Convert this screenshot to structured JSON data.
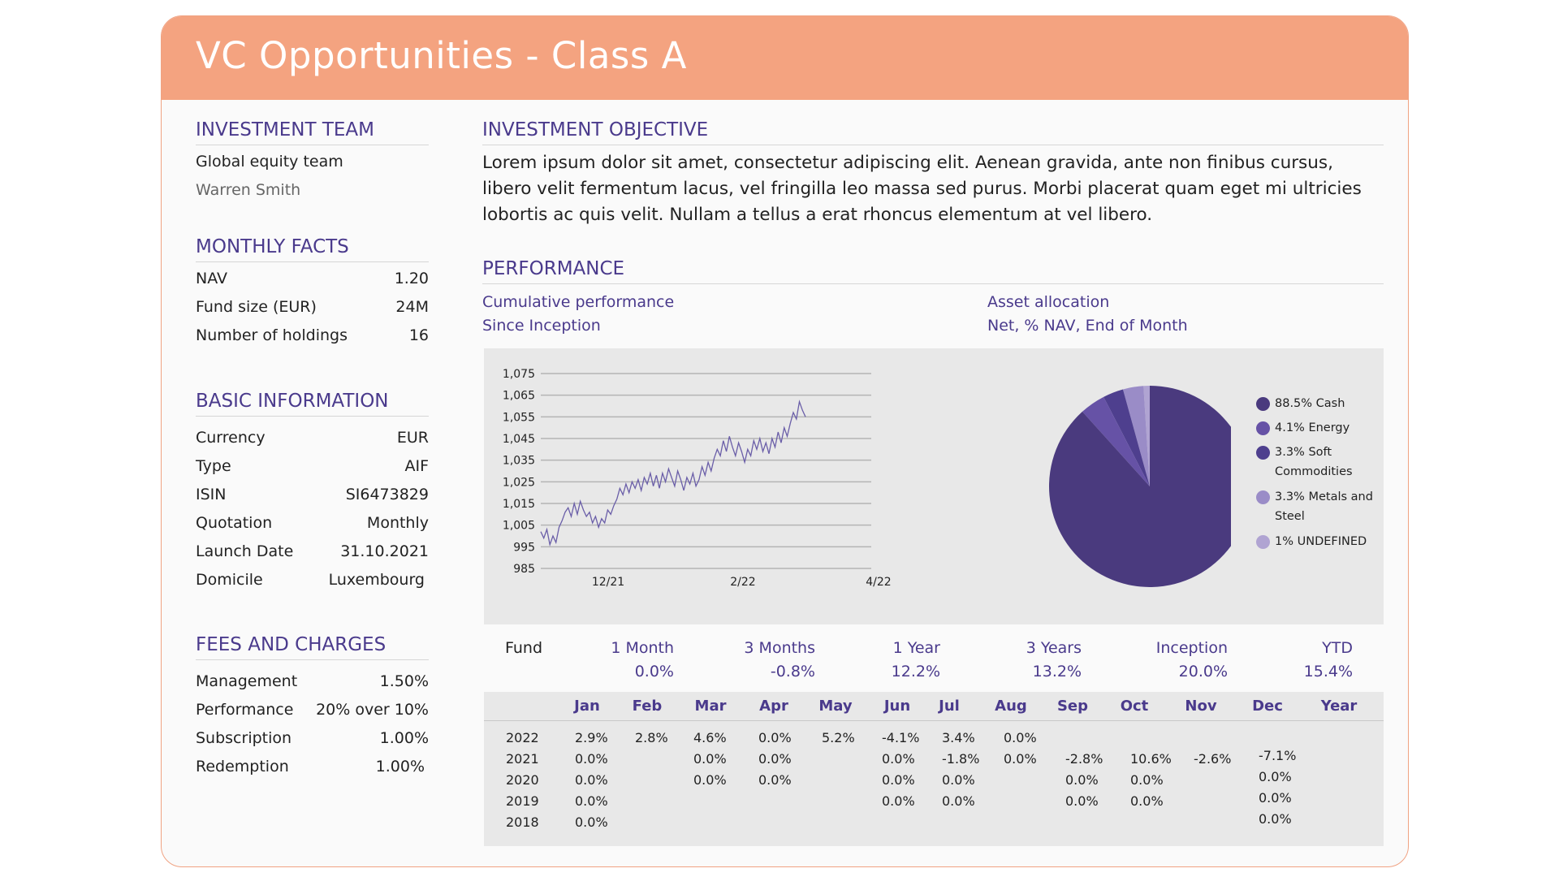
{
  "title": "VC Opportunities - Class A",
  "investment_team": {
    "heading": "INVESTMENT TEAM",
    "team": "Global equity team",
    "manager": "Warren Smith"
  },
  "monthly_facts": {
    "heading": "MONTHLY FACTS",
    "rows": [
      {
        "label": "NAV",
        "value": "1.20"
      },
      {
        "label": "Fund size (EUR)",
        "value": "24M"
      },
      {
        "label": "Number of holdings",
        "value": "16"
      }
    ]
  },
  "basic_information": {
    "heading": "BASIC INFORMATION",
    "rows": [
      {
        "label": "Currency",
        "value": "EUR"
      },
      {
        "label": "Type",
        "value": "AIF"
      },
      {
        "label": "ISIN",
        "value": "SI6473829"
      },
      {
        "label": "Quotation",
        "value": "Monthly"
      },
      {
        "label": "Launch Date",
        "value": "31.10.2021"
      },
      {
        "label": "Domicile",
        "value": "Luxembourg"
      }
    ]
  },
  "fees": {
    "heading": "FEES AND CHARGES",
    "rows": [
      {
        "label": "Management",
        "value": "1.50%"
      },
      {
        "label": "Performance",
        "value": "20% over 10%"
      },
      {
        "label": "Subscription",
        "value": "1.00%"
      },
      {
        "label": "Redemption",
        "value": "1.00%"
      }
    ]
  },
  "objective": {
    "heading": "INVESTMENT OBJECTIVE",
    "text": "Lorem ipsum dolor sit amet, consectetur adipiscing elit. Aenean gravida, ante non finibus cursus, libero velit fermentum lacus, vel fringilla leo massa sed purus. Morbi placerat quam eget mi ultricies lobortis ac quis velit. Nullam a tellus a erat rhoncus elementum at vel libero."
  },
  "performance": {
    "heading": "PERFORMANCE",
    "cumulative_title": "Cumulative performance",
    "cumulative_subtitle": "Since Inception",
    "allocation_title": "Asset allocation",
    "allocation_subtitle": "Net, % NAV, End of Month",
    "fund_label": "Fund",
    "periods": [
      {
        "label": "1 Month",
        "value": "0.0%"
      },
      {
        "label": "3 Months",
        "value": "-0.8%"
      },
      {
        "label": "1 Year",
        "value": "12.2%"
      },
      {
        "label": "3 Years",
        "value": "13.2%"
      },
      {
        "label": "Inception",
        "value": "20.0%"
      },
      {
        "label": "YTD",
        "value": "15.4%"
      }
    ]
  },
  "monthly_table": {
    "months": [
      "Jan",
      "Feb",
      "Mar",
      "Apr",
      "May",
      "Jun",
      "Jul",
      "Aug",
      "Sep",
      "Oct",
      "Nov",
      "Dec",
      "Year"
    ],
    "years": [
      "2022",
      "2021",
      "2020",
      "2019",
      "2018"
    ],
    "rows": {
      "2022": [
        "2.9%",
        "2.8%",
        "4.6%",
        "0.0%",
        "5.2%",
        "-4.1%",
        "3.4%",
        "0.0%",
        "",
        "",
        "",
        "",
        ""
      ],
      "2021": [
        "0.0%",
        "",
        "0.0%",
        "0.0%",
        "",
        "0.0%",
        "-1.8%",
        "0.0%",
        "-2.8%",
        "10.6%",
        "-2.6%",
        "-7.1%",
        ""
      ],
      "2020": [
        "0.0%",
        "",
        "0.0%",
        "0.0%",
        "",
        "0.0%",
        "0.0%",
        "",
        "0.0%",
        "0.0%",
        "",
        "0.0%",
        ""
      ],
      "2019": [
        "0.0%",
        "",
        "",
        "",
        "",
        "0.0%",
        "0.0%",
        "",
        "0.0%",
        "0.0%",
        "",
        "0.0%",
        ""
      ],
      "2018": [
        "0.0%",
        "",
        "",
        "",
        "",
        "",
        "",
        "",
        "",
        "",
        "",
        "0.0%",
        ""
      ]
    }
  },
  "chart_data": [
    {
      "type": "line",
      "title": "Cumulative performance",
      "subtitle": "Since Inception",
      "x_ticks": [
        "12/21",
        "2/22",
        "4/22"
      ],
      "y_ticks": [
        "1,075",
        "1,065",
        "1,055",
        "1,045",
        "1,035",
        "1,025",
        "1,015",
        "1,005",
        "995",
        "985"
      ],
      "ylim": [
        985,
        1075
      ],
      "grid": true,
      "line_color": "#6a5ea8",
      "series": [
        {
          "values": [
            1002,
            999,
            1003,
            996,
            1000,
            997,
            1004,
            1007,
            1011,
            1013,
            1009,
            1015,
            1010,
            1016,
            1012,
            1009,
            1011,
            1006,
            1009,
            1004,
            1008,
            1006,
            1012,
            1010,
            1014,
            1017,
            1022,
            1019,
            1024,
            1020,
            1025,
            1022,
            1026,
            1021,
            1027,
            1024,
            1029,
            1023,
            1028,
            1022,
            1029,
            1025,
            1031,
            1027,
            1023,
            1030,
            1026,
            1021,
            1027,
            1024,
            1029,
            1023,
            1026,
            1032,
            1028,
            1034,
            1030,
            1036,
            1040,
            1037,
            1044,
            1039,
            1046,
            1041,
            1037,
            1043,
            1039,
            1034,
            1040,
            1037,
            1044,
            1040,
            1045,
            1039,
            1043,
            1038,
            1045,
            1041,
            1048,
            1043,
            1050,
            1046,
            1052,
            1057,
            1054,
            1062,
            1058,
            1055
          ]
        }
      ]
    },
    {
      "type": "pie",
      "title": "Asset allocation",
      "subtitle": "Net, % NAV, End of Month",
      "legend_position": "right",
      "slices": [
        {
          "label": "88.5% Cash",
          "value": 88.5,
          "color": "#4a3a7e"
        },
        {
          "label": "4.1% Energy",
          "value": 4.1,
          "color": "#6652a6"
        },
        {
          "label": "3.3% Soft Commodities",
          "value": 3.3,
          "color": "#4e3f8e"
        },
        {
          "label": "3.3% Metals and Steel",
          "value": 3.3,
          "color": "#9a8cc7"
        },
        {
          "label": "1% UNDEFINED",
          "value": 1.0,
          "color": "#b0a4d2"
        }
      ]
    }
  ]
}
